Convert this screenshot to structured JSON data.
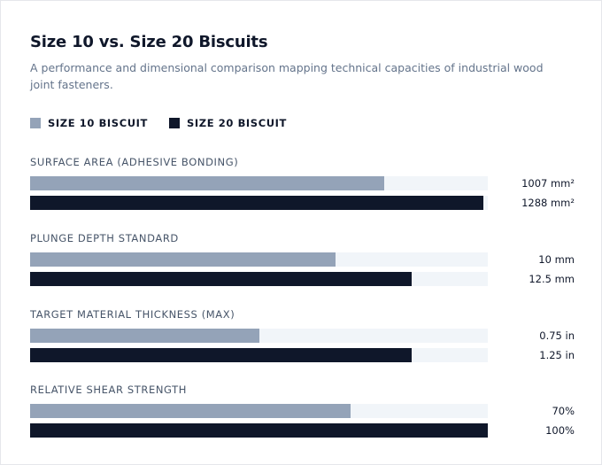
{
  "chart_data": {
    "type": "bar",
    "orientation": "horizontal",
    "title": "Size 10 vs. Size 20 Biscuits",
    "subtitle": "A performance and dimensional comparison mapping technical capacities of industrial wood joint fasteners.",
    "legend_position": "top-left",
    "series": [
      {
        "name": "SIZE 10 BISCUIT",
        "color": "#94a3b8"
      },
      {
        "name": "SIZE 20 BISCUIT",
        "color": "#0f172a"
      }
    ],
    "metrics": [
      {
        "label": "SURFACE AREA (ADHESIVE BONDING)",
        "max": 1300,
        "values": [
          1007,
          1288
        ],
        "display": [
          "1007 mm²",
          "1288 mm²"
        ]
      },
      {
        "label": "PLUNGE DEPTH STANDARD",
        "max": 15,
        "values": [
          10,
          12.5
        ],
        "display": [
          "10 mm",
          "12.5 mm"
        ]
      },
      {
        "label": "TARGET MATERIAL THICKNESS (MAX)",
        "max": 1.5,
        "values": [
          0.75,
          1.25
        ],
        "display": [
          "0.75 in",
          "1.25 in"
        ]
      },
      {
        "label": "RELATIVE SHEAR STRENGTH",
        "max": 100,
        "values": [
          70,
          100
        ],
        "display": [
          "70%",
          "100%"
        ]
      }
    ]
  }
}
